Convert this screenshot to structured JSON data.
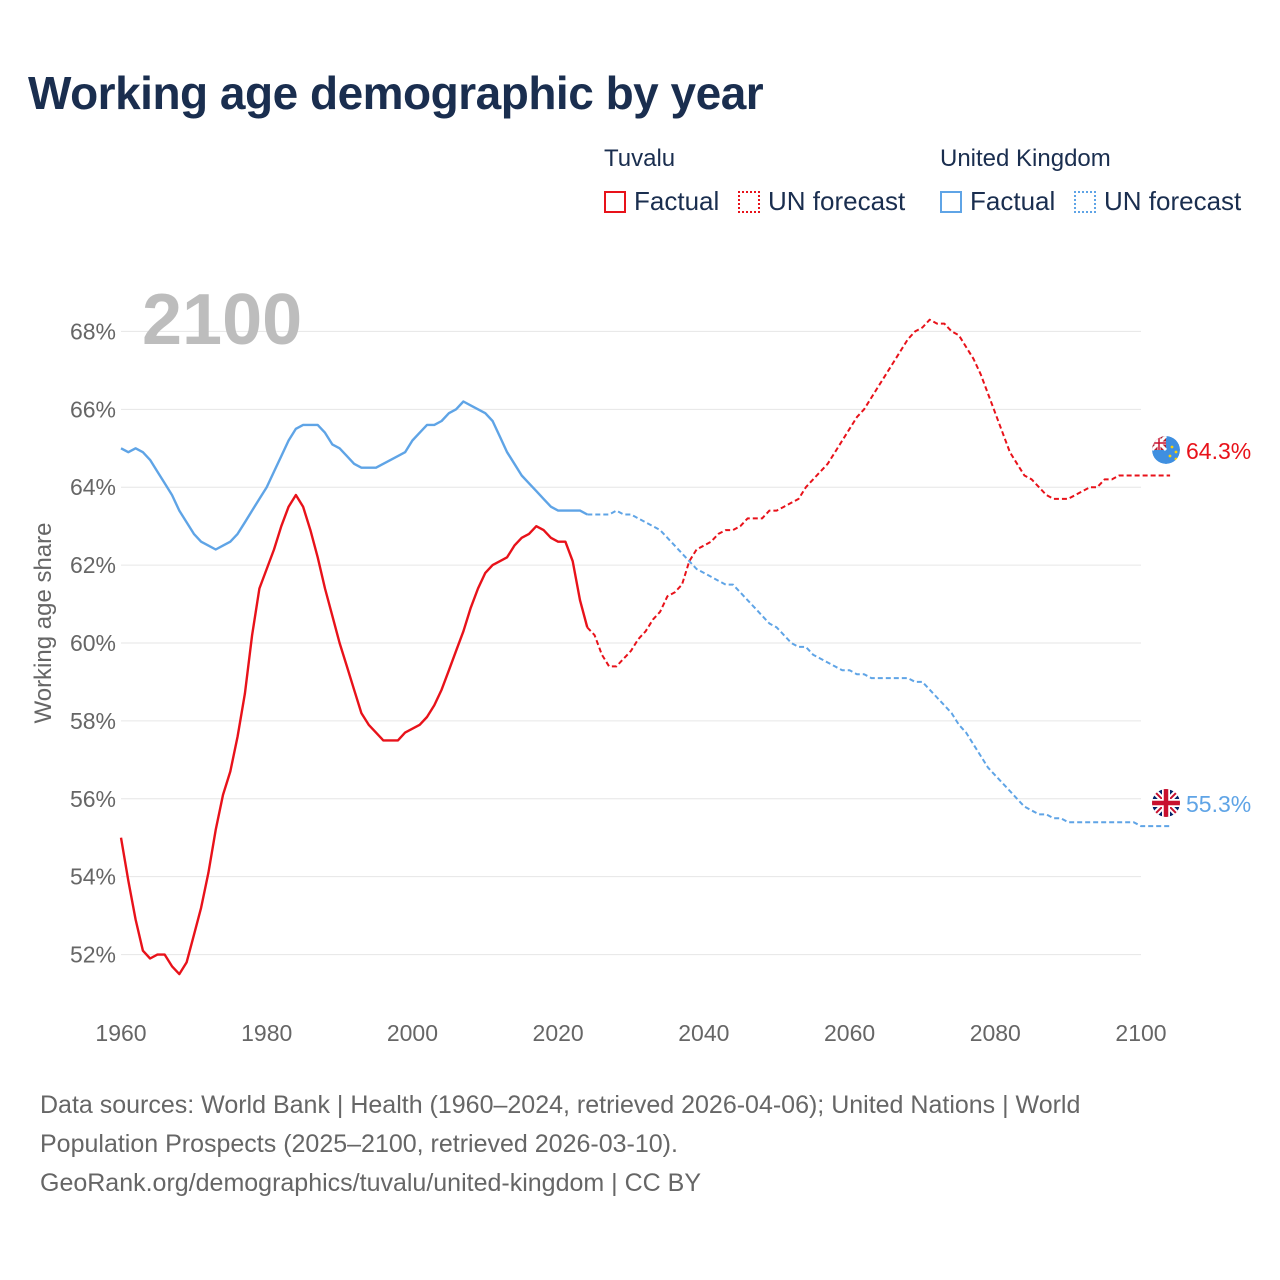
{
  "title": "Working age demographic by year",
  "legend": {
    "tuvalu": {
      "name": "Tuvalu",
      "factual": "Factual",
      "forecast": "UN forecast"
    },
    "uk": {
      "name": "United Kingdom",
      "factual": "Factual",
      "forecast": "UN forecast"
    }
  },
  "colors": {
    "tuvalu": "#e8121a",
    "uk": "#5fa4e6",
    "text": "#1a2e4f",
    "axis": "#666666",
    "grid": "#e6e6e6",
    "year": "#bdbdbd"
  },
  "chart_data": {
    "type": "line",
    "title": "Working age demographic by year",
    "ylabel": "Working age share",
    "xlabel": "",
    "year_overlay": "2100",
    "xlim": [
      1960,
      2100
    ],
    "ylim": [
      50.5,
      69.5
    ],
    "x_ticks": [
      1960,
      1980,
      2000,
      2020,
      2040,
      2060,
      2080,
      2100
    ],
    "y_ticks": [
      52,
      54,
      56,
      58,
      60,
      62,
      64,
      66,
      68
    ],
    "y_tick_labels": [
      "52%",
      "54%",
      "56%",
      "58%",
      "60%",
      "62%",
      "64%",
      "66%",
      "68%"
    ],
    "series": [
      {
        "name": "Tuvalu",
        "kind": "factual",
        "x": [
          1960,
          1961,
          1962,
          1963,
          1964,
          1965,
          1966,
          1967,
          1968,
          1969,
          1970,
          1971,
          1972,
          1973,
          1974,
          1975,
          1976,
          1977,
          1978,
          1979,
          1980,
          1981,
          1982,
          1983,
          1984,
          1985,
          1986,
          1987,
          1988,
          1989,
          1990,
          1991,
          1992,
          1993,
          1994,
          1995,
          1996,
          1997,
          1998,
          1999,
          2000,
          2001,
          2002,
          2003,
          2004,
          2005,
          2006,
          2007,
          2008,
          2009,
          2010,
          2011,
          2012,
          2013,
          2014,
          2015,
          2016,
          2017,
          2018,
          2019,
          2020,
          2021,
          2022,
          2023,
          2024
        ],
        "y": [
          55.0,
          53.9,
          52.9,
          52.1,
          51.9,
          52.0,
          52.0,
          51.7,
          51.5,
          51.8,
          52.5,
          53.2,
          54.1,
          55.2,
          56.1,
          56.7,
          57.6,
          58.7,
          60.2,
          61.4,
          61.9,
          62.4,
          63.0,
          63.5,
          63.8,
          63.5,
          62.9,
          62.2,
          61.4,
          60.7,
          60.0,
          59.4,
          58.8,
          58.2,
          57.9,
          57.7,
          57.5,
          57.5,
          57.5,
          57.7,
          57.8,
          57.9,
          58.1,
          58.4,
          58.8,
          59.3,
          59.8,
          60.3,
          60.9,
          61.4,
          61.8,
          62.0,
          62.1,
          62.2,
          62.5,
          62.7,
          62.8,
          63.0,
          62.9,
          62.7,
          62.6,
          62.6,
          62.1,
          61.1,
          60.4
        ]
      },
      {
        "name": "Tuvalu",
        "kind": "forecast",
        "x": [
          2024,
          2025,
          2026,
          2027,
          2028,
          2029,
          2030,
          2031,
          2032,
          2033,
          2034,
          2035,
          2036,
          2037,
          2038,
          2039,
          2040,
          2041,
          2042,
          2043,
          2044,
          2045,
          2046,
          2047,
          2048,
          2049,
          2050,
          2051,
          2052,
          2053,
          2054,
          2055,
          2056,
          2057,
          2058,
          2059,
          2060,
          2061,
          2062,
          2063,
          2064,
          2065,
          2066,
          2067,
          2068,
          2069,
          2070,
          2071,
          2072,
          2073,
          2074,
          2075,
          2076,
          2077,
          2078,
          2079,
          2080,
          2081,
          2082,
          2083,
          2084,
          2085,
          2086,
          2087,
          2088,
          2089,
          2090,
          2091,
          2092,
          2093,
          2094,
          2095,
          2096,
          2097,
          2098,
          2099,
          2100,
          2101,
          2102,
          2103,
          2104
        ],
        "y": [
          60.4,
          60.2,
          59.7,
          59.4,
          59.4,
          59.6,
          59.8,
          60.1,
          60.3,
          60.6,
          60.8,
          61.2,
          61.3,
          61.5,
          62.1,
          62.4,
          62.5,
          62.6,
          62.8,
          62.9,
          62.9,
          63.0,
          63.2,
          63.2,
          63.2,
          63.4,
          63.4,
          63.5,
          63.6,
          63.7,
          64.0,
          64.2,
          64.4,
          64.6,
          64.9,
          65.2,
          65.5,
          65.8,
          66.0,
          66.3,
          66.6,
          66.9,
          67.2,
          67.5,
          67.8,
          68.0,
          68.1,
          68.3,
          68.2,
          68.2,
          68.0,
          67.9,
          67.6,
          67.3,
          66.9,
          66.4,
          65.9,
          65.4,
          64.9,
          64.6,
          64.3,
          64.2,
          64.0,
          63.8,
          63.7,
          63.7,
          63.7,
          63.8,
          63.9,
          64.0,
          64.0,
          64.2,
          64.2,
          64.3,
          64.3,
          64.3,
          64.3,
          64.3,
          64.3,
          64.3,
          64.3
        ]
      },
      {
        "name": "United Kingdom",
        "kind": "factual",
        "x": [
          1960,
          1961,
          1962,
          1963,
          1964,
          1965,
          1966,
          1967,
          1968,
          1969,
          1970,
          1971,
          1972,
          1973,
          1974,
          1975,
          1976,
          1977,
          1978,
          1979,
          1980,
          1981,
          1982,
          1983,
          1984,
          1985,
          1986,
          1987,
          1988,
          1989,
          1990,
          1991,
          1992,
          1993,
          1994,
          1995,
          1996,
          1997,
          1998,
          1999,
          2000,
          2001,
          2002,
          2003,
          2004,
          2005,
          2006,
          2007,
          2008,
          2009,
          2010,
          2011,
          2012,
          2013,
          2014,
          2015,
          2016,
          2017,
          2018,
          2019,
          2020,
          2021,
          2022,
          2023,
          2024
        ],
        "y": [
          65.0,
          64.9,
          65.0,
          64.9,
          64.7,
          64.4,
          64.1,
          63.8,
          63.4,
          63.1,
          62.8,
          62.6,
          62.5,
          62.4,
          62.5,
          62.6,
          62.8,
          63.1,
          63.4,
          63.7,
          64.0,
          64.4,
          64.8,
          65.2,
          65.5,
          65.6,
          65.6,
          65.6,
          65.4,
          65.1,
          65.0,
          64.8,
          64.6,
          64.5,
          64.5,
          64.5,
          64.6,
          64.7,
          64.8,
          64.9,
          65.2,
          65.4,
          65.6,
          65.6,
          65.7,
          65.9,
          66.0,
          66.2,
          66.1,
          66.0,
          65.9,
          65.7,
          65.3,
          64.9,
          64.6,
          64.3,
          64.1,
          63.9,
          63.7,
          63.5,
          63.4,
          63.4,
          63.4,
          63.4,
          63.3
        ]
      },
      {
        "name": "United Kingdom",
        "kind": "forecast",
        "x": [
          2024,
          2025,
          2026,
          2027,
          2028,
          2029,
          2030,
          2031,
          2032,
          2033,
          2034,
          2035,
          2036,
          2037,
          2038,
          2039,
          2040,
          2041,
          2042,
          2043,
          2044,
          2045,
          2046,
          2047,
          2048,
          2049,
          2050,
          2051,
          2052,
          2053,
          2054,
          2055,
          2056,
          2057,
          2058,
          2059,
          2060,
          2061,
          2062,
          2063,
          2064,
          2065,
          2066,
          2067,
          2068,
          2069,
          2070,
          2071,
          2072,
          2073,
          2074,
          2075,
          2076,
          2077,
          2078,
          2079,
          2080,
          2081,
          2082,
          2083,
          2084,
          2085,
          2086,
          2087,
          2088,
          2089,
          2090,
          2091,
          2092,
          2093,
          2094,
          2095,
          2096,
          2097,
          2098,
          2099,
          2100,
          2101,
          2102,
          2103,
          2104
        ],
        "y": [
          63.3,
          63.3,
          63.3,
          63.3,
          63.4,
          63.3,
          63.3,
          63.2,
          63.1,
          63.0,
          62.9,
          62.7,
          62.5,
          62.3,
          62.1,
          61.9,
          61.8,
          61.7,
          61.6,
          61.5,
          61.5,
          61.3,
          61.1,
          60.9,
          60.7,
          60.5,
          60.4,
          60.2,
          60.0,
          59.9,
          59.9,
          59.7,
          59.6,
          59.5,
          59.4,
          59.3,
          59.3,
          59.2,
          59.2,
          59.1,
          59.1,
          59.1,
          59.1,
          59.1,
          59.1,
          59.0,
          59.0,
          58.8,
          58.6,
          58.4,
          58.2,
          57.9,
          57.7,
          57.4,
          57.1,
          56.8,
          56.6,
          56.4,
          56.2,
          56.0,
          55.8,
          55.7,
          55.6,
          55.6,
          55.5,
          55.5,
          55.4,
          55.4,
          55.4,
          55.4,
          55.4,
          55.4,
          55.4,
          55.4,
          55.4,
          55.4,
          55.3,
          55.3,
          55.3,
          55.3,
          55.3
        ]
      }
    ],
    "end_labels": [
      {
        "name": "Tuvalu",
        "value": 64.3,
        "label": "64.3%"
      },
      {
        "name": "United Kingdom",
        "value": 55.3,
        "label": "55.3%"
      }
    ]
  },
  "sources": [
    "Data sources: World Bank | Health (1960–2024, retrieved 2026-04-06); United Nations | World",
    "Population Prospects (2025–2100, retrieved 2026-03-10).",
    "GeoRank.org/demographics/tuvalu/united-kingdom | CC BY"
  ]
}
